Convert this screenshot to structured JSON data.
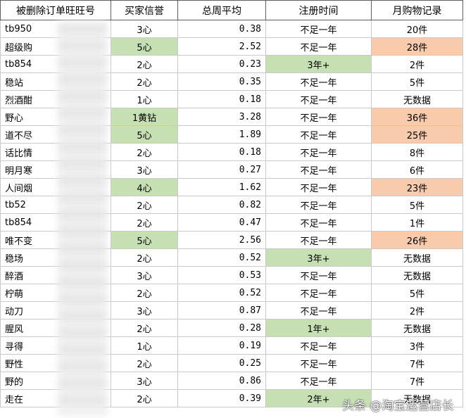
{
  "headers": [
    "被删除订单旺旺号",
    "买家信誉",
    "总周平均",
    "注册时间",
    "月购物记录"
  ],
  "rows": [
    {
      "name": "tb950",
      "rep": "3心",
      "avg": "0.38",
      "reg": "不足一年",
      "month": "20件",
      "rep_hl": "",
      "reg_hl": "",
      "month_hl": ""
    },
    {
      "name": "超级购",
      "rep": "5心",
      "avg": "2.52",
      "reg": "不足一年",
      "month": "28件",
      "rep_hl": "green",
      "reg_hl": "",
      "month_hl": "orange"
    },
    {
      "name": "tb854",
      "rep": "2心",
      "avg": "0.23",
      "reg": "3年+",
      "month": "2件",
      "rep_hl": "",
      "reg_hl": "green",
      "month_hl": ""
    },
    {
      "name": "稳站",
      "rep": "2心",
      "avg": "0.35",
      "reg": "不足一年",
      "month": "5件",
      "rep_hl": "",
      "reg_hl": "",
      "month_hl": ""
    },
    {
      "name": "烈酒酣",
      "rep": "1心",
      "avg": "0.18",
      "reg": "不足一年",
      "month": "无数据",
      "rep_hl": "",
      "reg_hl": "",
      "month_hl": ""
    },
    {
      "name": "野心",
      "rep": "1黄钻",
      "avg": "3.28",
      "reg": "不足一年",
      "month": "36件",
      "rep_hl": "green",
      "reg_hl": "",
      "month_hl": "orange"
    },
    {
      "name": "道不尽",
      "rep": "5心",
      "avg": "1.89",
      "reg": "不足一年",
      "month": "25件",
      "rep_hl": "green",
      "reg_hl": "",
      "month_hl": "orange"
    },
    {
      "name": "话比情",
      "rep": "2心",
      "avg": "0.18",
      "reg": "不足一年",
      "month": "8件",
      "rep_hl": "",
      "reg_hl": "",
      "month_hl": ""
    },
    {
      "name": "明月寒",
      "rep": "3心",
      "avg": "0.27",
      "reg": "不足一年",
      "month": "6件",
      "rep_hl": "",
      "reg_hl": "",
      "month_hl": ""
    },
    {
      "name": "人间烟",
      "rep": "4心",
      "avg": "1.62",
      "reg": "不足一年",
      "month": "23件",
      "rep_hl": "green",
      "reg_hl": "",
      "month_hl": "orange"
    },
    {
      "name": "tb52",
      "rep": "2心",
      "avg": "0.82",
      "reg": "不足一年",
      "month": "5件",
      "rep_hl": "",
      "reg_hl": "",
      "month_hl": ""
    },
    {
      "name": "tb854",
      "rep": "2心",
      "avg": "0.47",
      "reg": "不足一年",
      "month": "1件",
      "rep_hl": "",
      "reg_hl": "",
      "month_hl": ""
    },
    {
      "name": "唯不变",
      "rep": "5心",
      "avg": "2.56",
      "reg": "不足一年",
      "month": "26件",
      "rep_hl": "green",
      "reg_hl": "",
      "month_hl": "orange"
    },
    {
      "name": "稳场",
      "rep": "2心",
      "avg": "0.52",
      "reg": "3年+",
      "month": "无数据",
      "rep_hl": "",
      "reg_hl": "green",
      "month_hl": ""
    },
    {
      "name": "醉酒",
      "rep": "3心",
      "avg": "0.53",
      "reg": "不足一年",
      "month": "无数据",
      "rep_hl": "",
      "reg_hl": "",
      "month_hl": ""
    },
    {
      "name": "柠萌",
      "rep": "2心",
      "avg": "0.52",
      "reg": "不足一年",
      "month": "5件",
      "rep_hl": "",
      "reg_hl": "",
      "month_hl": ""
    },
    {
      "name": "动刀",
      "rep": "3心",
      "avg": "0.87",
      "reg": "不足一年",
      "month": "2件",
      "rep_hl": "",
      "reg_hl": "",
      "month_hl": ""
    },
    {
      "name": "腥风",
      "rep": "2心",
      "avg": "0.28",
      "reg": "1年+",
      "month": "无数据",
      "rep_hl": "",
      "reg_hl": "green",
      "month_hl": ""
    },
    {
      "name": "寻得",
      "rep": "1心",
      "avg": "0.19",
      "reg": "不足一年",
      "month": "3件",
      "rep_hl": "",
      "reg_hl": "",
      "month_hl": ""
    },
    {
      "name": "野性",
      "rep": "2心",
      "avg": "0.25",
      "reg": "不足一年",
      "month": "7件",
      "rep_hl": "",
      "reg_hl": "",
      "month_hl": ""
    },
    {
      "name": "野的",
      "rep": "3心",
      "avg": "0.86",
      "reg": "不足一年",
      "month": "7件",
      "rep_hl": "",
      "reg_hl": "",
      "month_hl": ""
    },
    {
      "name": "走在",
      "rep": "2心",
      "avg": "0.39",
      "reg": "2年+",
      "month": "无数据",
      "rep_hl": "",
      "reg_hl": "green",
      "month_hl": ""
    }
  ],
  "watermark": "头条 @淘宝运营店长",
  "colors": {
    "green": "#c6e0b4",
    "orange": "#f8cbad",
    "grid": "#c9c9c9"
  }
}
